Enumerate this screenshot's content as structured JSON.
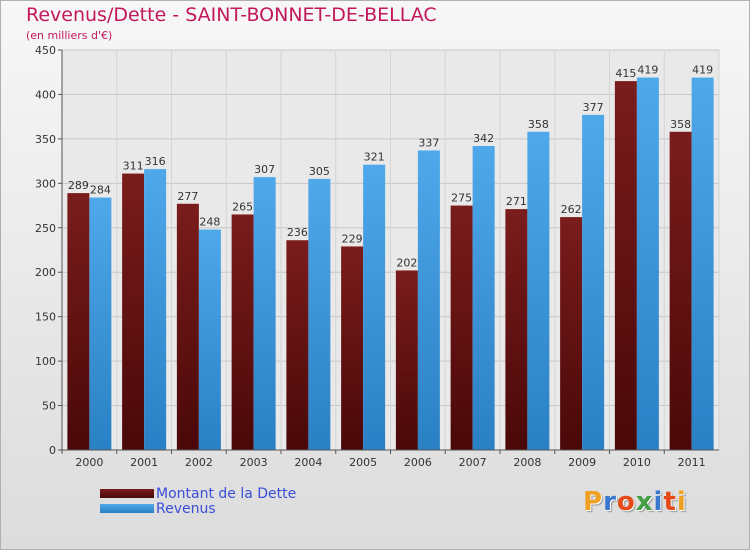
{
  "colors": {
    "dette": "#7a1c1c",
    "dette_dark": "#4a0808",
    "revenus": "#4ea8ea",
    "revenus_dark": "#2a80c4",
    "title": "#c2185b",
    "legend_text": "#3b4ed8"
  },
  "logo": {
    "text": "Proxiti",
    "letter_colors": [
      "#f0a020",
      "#3a78d0",
      "#e64a19",
      "#43a047",
      "#3a78d0",
      "#e64a19",
      "#f0a020"
    ]
  },
  "chart_data": {
    "type": "bar",
    "title": "Revenus/Dette - SAINT-BONNET-DE-BELLAC",
    "subtitle": "(en milliers d'€)",
    "categories": [
      "2000",
      "2001",
      "2002",
      "2003",
      "2004",
      "2005",
      "2006",
      "2007",
      "2008",
      "2009",
      "2010",
      "2011"
    ],
    "series": [
      {
        "name": "Montant de la Dette",
        "values": [
          289,
          311,
          277,
          265,
          236,
          229,
          202,
          275,
          271,
          262,
          415,
          358
        ]
      },
      {
        "name": "Revenus",
        "values": [
          284,
          316,
          248,
          307,
          305,
          321,
          337,
          342,
          358,
          377,
          419,
          419
        ]
      }
    ],
    "ylim": [
      0,
      450
    ],
    "yticks": [
      0,
      50,
      100,
      150,
      200,
      250,
      300,
      350,
      400,
      450
    ],
    "grid": true,
    "legend_position": "bottom-left"
  }
}
